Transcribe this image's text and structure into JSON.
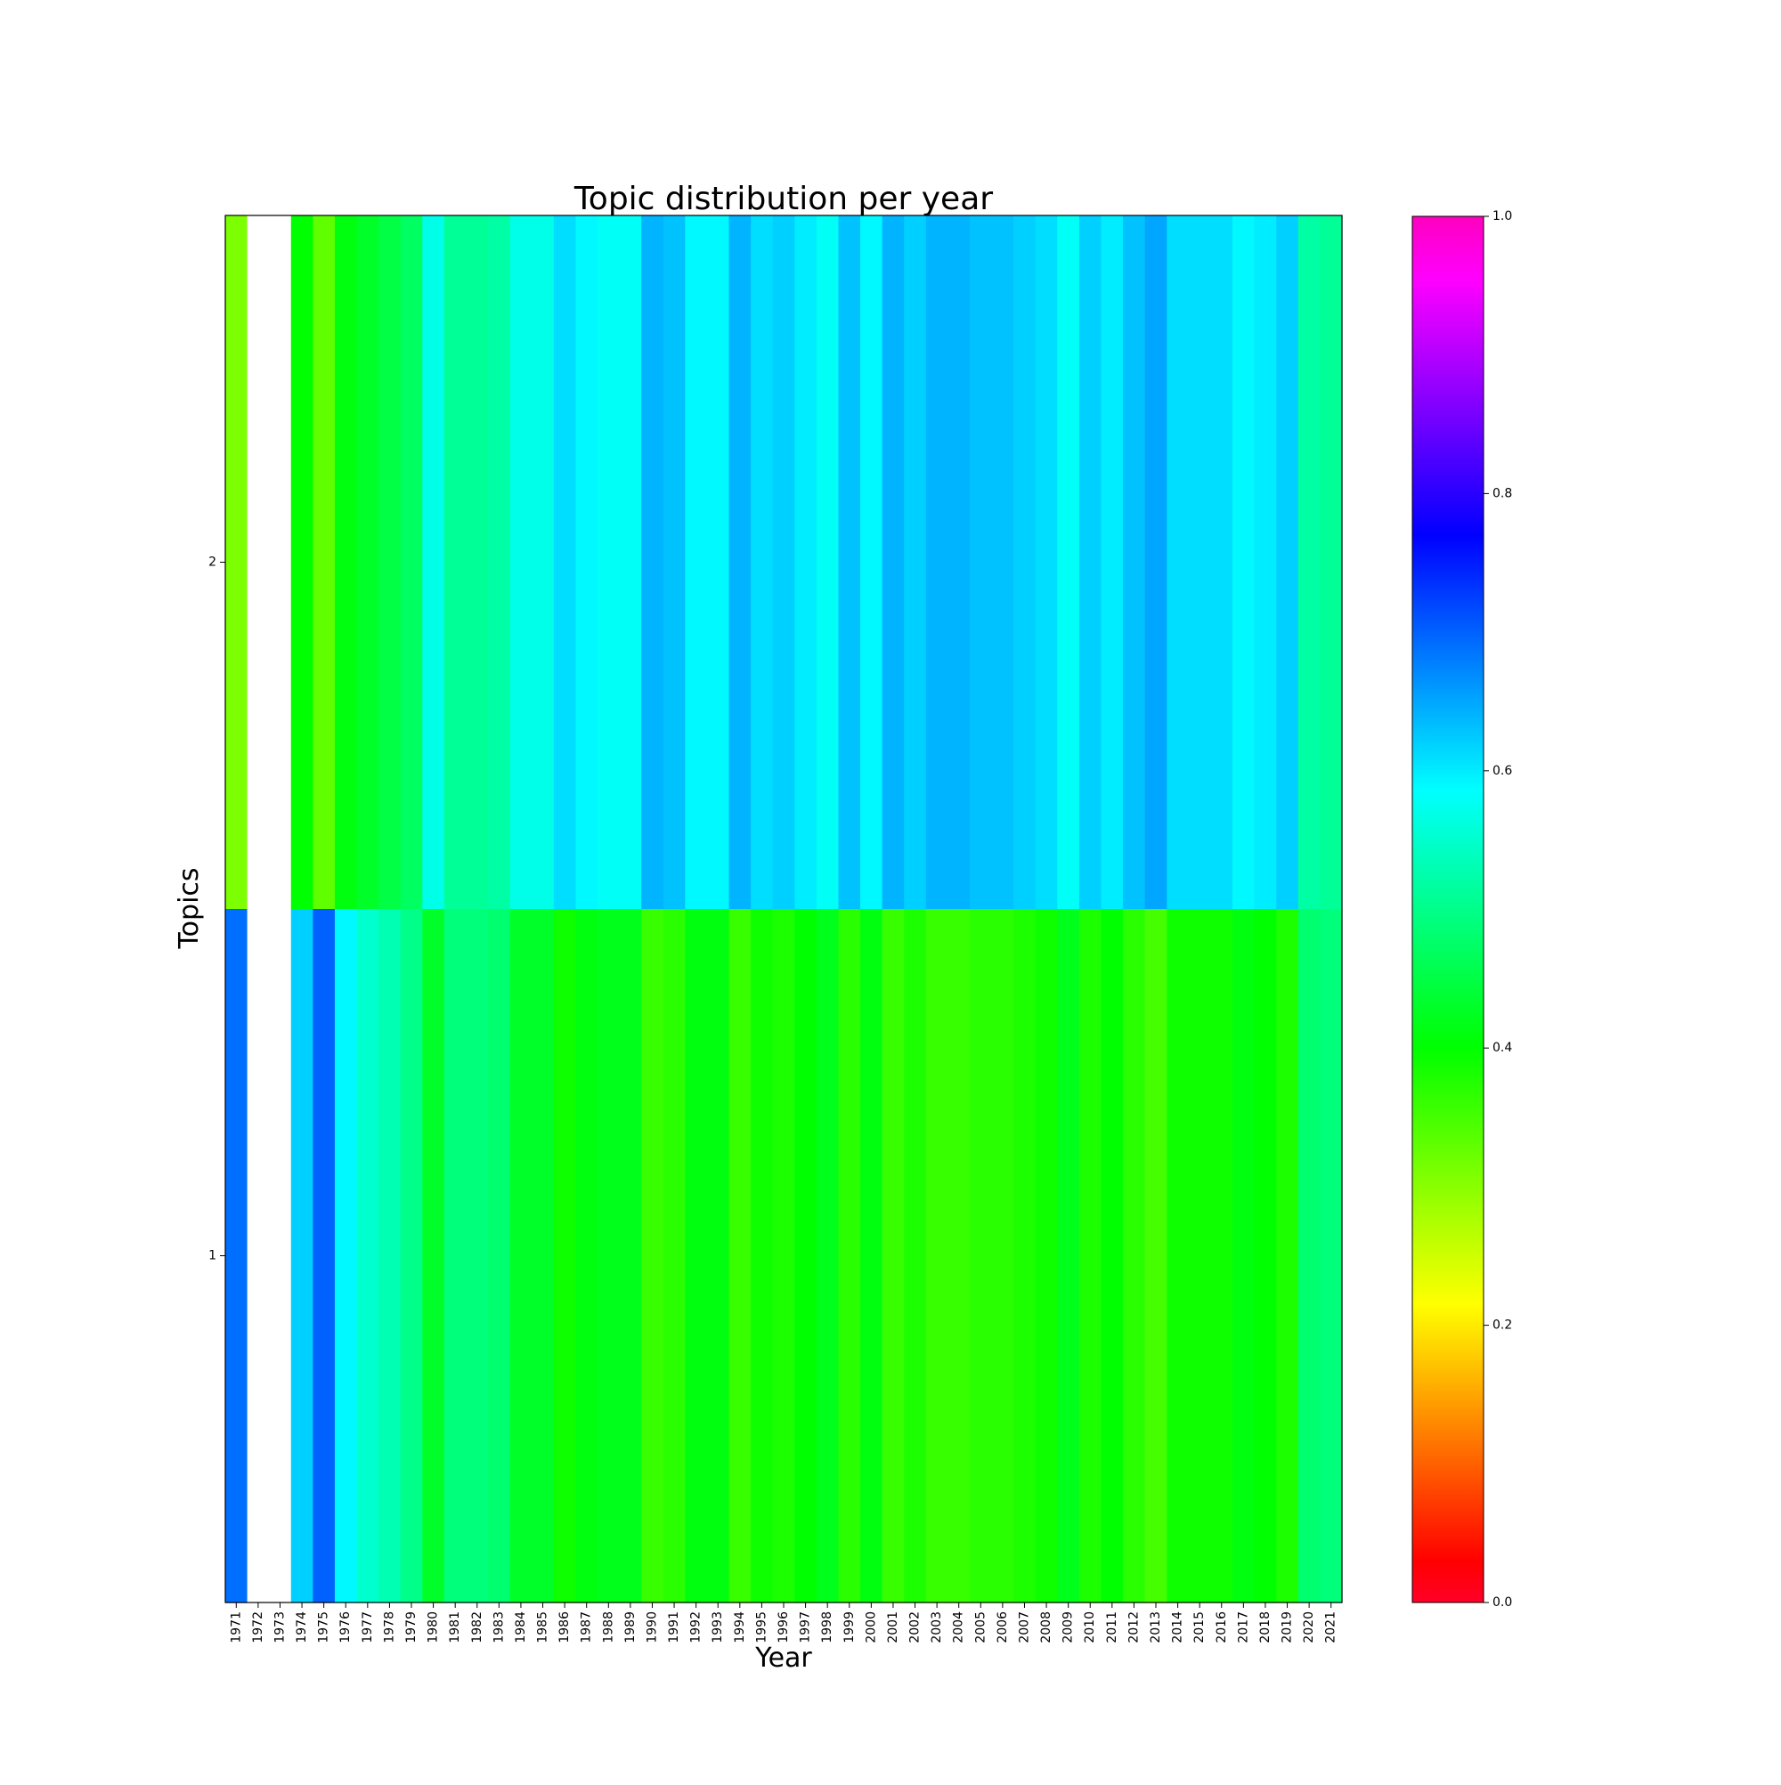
{
  "chart_data": {
    "type": "heatmap",
    "title": "Topic distribution per year",
    "xlabel": "Year",
    "ylabel": "Topics",
    "x": [
      "1971",
      "1972",
      "1973",
      "1974",
      "1975",
      "1976",
      "1977",
      "1978",
      "1979",
      "1980",
      "1981",
      "1982",
      "1983",
      "1984",
      "1985",
      "1986",
      "1987",
      "1988",
      "1989",
      "1990",
      "1991",
      "1992",
      "1993",
      "1994",
      "1995",
      "1996",
      "1997",
      "1998",
      "1999",
      "2000",
      "2001",
      "2002",
      "2003",
      "2004",
      "2005",
      "2006",
      "2007",
      "2008",
      "2009",
      "2010",
      "2011",
      "2012",
      "2013",
      "2014",
      "2015",
      "2016",
      "2017",
      "2018",
      "2019",
      "2020",
      "2021"
    ],
    "y_top_to_bottom": [
      "2",
      "1"
    ],
    "y_ticks_shown": [
      "2",
      "1"
    ],
    "colormap": "gist_rainbow",
    "colorbar_range": [
      0.0,
      1.0
    ],
    "colorbar_ticks": [
      "0.0",
      "0.2",
      "0.4",
      "0.6",
      "0.8",
      "1.0"
    ],
    "missing_color": "#ffffff",
    "series": [
      {
        "name": "2",
        "values": [
          0.31,
          null,
          null,
          0.4,
          0.33,
          0.41,
          0.43,
          0.45,
          0.47,
          0.57,
          0.51,
          0.51,
          0.52,
          0.57,
          0.57,
          0.61,
          0.59,
          0.58,
          0.58,
          0.64,
          0.63,
          0.59,
          0.59,
          0.64,
          0.61,
          0.62,
          0.6,
          0.58,
          0.63,
          0.59,
          0.64,
          0.62,
          0.64,
          0.64,
          0.63,
          0.63,
          0.62,
          0.61,
          0.58,
          0.62,
          0.6,
          0.63,
          0.65,
          0.61,
          0.61,
          0.61,
          0.59,
          0.6,
          0.62,
          0.52,
          0.51
        ]
      },
      {
        "name": "1",
        "values": [
          0.69,
          null,
          null,
          0.62,
          0.7,
          0.59,
          0.55,
          0.53,
          0.5,
          0.43,
          0.49,
          0.49,
          0.48,
          0.43,
          0.43,
          0.39,
          0.41,
          0.42,
          0.42,
          0.36,
          0.37,
          0.41,
          0.41,
          0.36,
          0.39,
          0.38,
          0.4,
          0.42,
          0.37,
          0.41,
          0.36,
          0.38,
          0.36,
          0.36,
          0.37,
          0.37,
          0.38,
          0.39,
          0.42,
          0.38,
          0.4,
          0.37,
          0.35,
          0.39,
          0.39,
          0.39,
          0.41,
          0.4,
          0.38,
          0.48,
          0.49
        ]
      }
    ]
  }
}
